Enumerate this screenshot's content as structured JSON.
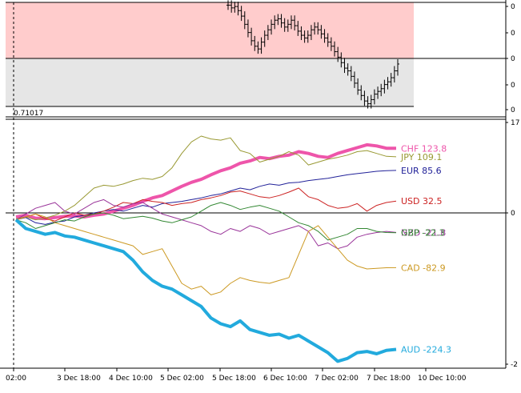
{
  "chart_data": [
    {
      "type": "candlestick",
      "title": "",
      "price_label": "0.71017",
      "y_ticks": [
        "0",
        "0",
        "0",
        "0",
        "0"
      ],
      "zones": [
        {
          "name": "overbought-zone",
          "color": "#ffcccc"
        },
        {
          "name": "oversold-zone",
          "color": "#e6e6e6"
        }
      ],
      "close_path": [
        1.1,
        1.08,
        1.09,
        1.06,
        1.02,
        0.96,
        0.9,
        0.84,
        0.8,
        0.78,
        0.83,
        0.88,
        0.92,
        0.96,
        0.99,
        1.0,
        0.97,
        0.94,
        0.96,
        0.99,
        0.95,
        0.91,
        0.88,
        0.86,
        0.88,
        0.92,
        0.94,
        0.92,
        0.89,
        0.86,
        0.83,
        0.8,
        0.76,
        0.72,
        0.68,
        0.64,
        0.62,
        0.58,
        0.53,
        0.48,
        0.44,
        0.4,
        0.38,
        0.41,
        0.45,
        0.47,
        0.49,
        0.52,
        0.54,
        0.57,
        0.62,
        0.67
      ]
    },
    {
      "type": "line",
      "title": "",
      "x_ticks": [
        "02:00",
        "3 Dec 18:00",
        "4 Dec 10:00",
        "5 Dec 02:00",
        "5 Dec 18:00",
        "6 Dec 10:00",
        "7 Dec 02:00",
        "7 Dec 18:00",
        "10 Dec 10:00"
      ],
      "y_ticks": [
        "17",
        "0",
        "-2"
      ],
      "ylim": [
        -250,
        170
      ],
      "series": [
        {
          "name": "CHF",
          "label": "CHF 123.8",
          "color": "#ee55aa",
          "width": 4,
          "values": [
            5,
            8,
            3,
            2,
            4,
            6,
            7,
            5,
            8,
            10,
            15,
            20,
            25,
            32,
            38,
            42,
            50,
            58,
            65,
            70,
            78,
            85,
            90,
            98,
            102,
            108,
            106,
            110,
            112,
            118,
            115,
            110,
            108,
            115,
            120,
            125,
            130,
            128,
            124,
            123.8
          ]
        },
        {
          "name": "JPY",
          "label": "JPY 109.1",
          "color": "#999933",
          "width": 1,
          "values": [
            2,
            5,
            0,
            3,
            8,
            15,
            25,
            40,
            55,
            60,
            58,
            62,
            68,
            72,
            70,
            75,
            90,
            115,
            135,
            145,
            140,
            138,
            142,
            120,
            115,
            100,
            105,
            110,
            118,
            112,
            95,
            100,
            105,
            108,
            112,
            118,
            120,
            115,
            110,
            109.1
          ]
        },
        {
          "name": "EUR",
          "label": "EUR 85.6",
          "color": "#222299",
          "width": 1,
          "values": [
            0,
            4,
            -5,
            -8,
            -4,
            -2,
            5,
            8,
            12,
            15,
            18,
            15,
            20,
            25,
            22,
            28,
            30,
            32,
            35,
            38,
            42,
            45,
            50,
            55,
            52,
            58,
            62,
            60,
            64,
            65,
            68,
            70,
            72,
            75,
            78,
            80,
            82,
            84,
            85,
            85.6
          ]
        },
        {
          "name": "USD",
          "label": "USD 32.5",
          "color": "#cc2222",
          "width": 1,
          "values": [
            0,
            5,
            10,
            2,
            -2,
            5,
            12,
            8,
            10,
            15,
            22,
            30,
            28,
            35,
            32,
            30,
            25,
            28,
            30,
            35,
            38,
            42,
            48,
            50,
            45,
            40,
            38,
            42,
            48,
            55,
            40,
            35,
            25,
            20,
            22,
            28,
            15,
            25,
            30,
            32.5
          ]
        },
        {
          "name": "NZD",
          "label": "NZD -21.8",
          "color": "#993399",
          "width": 1,
          "values": [
            0,
            10,
            20,
            25,
            30,
            15,
            10,
            20,
            30,
            35,
            25,
            22,
            28,
            30,
            20,
            10,
            5,
            0,
            -5,
            -10,
            -20,
            -25,
            -15,
            -20,
            -10,
            -15,
            -25,
            -20,
            -15,
            -10,
            -20,
            -45,
            -40,
            -50,
            -45,
            -30,
            -25,
            -22,
            -20,
            -21.8
          ]
        },
        {
          "name": "GBP",
          "label": "GBP -22.3",
          "color": "#338833",
          "width": 1,
          "values": [
            0,
            -5,
            -15,
            -10,
            -5,
            0,
            -2,
            5,
            10,
            12,
            8,
            2,
            4,
            6,
            3,
            -2,
            -5,
            0,
            5,
            15,
            25,
            30,
            25,
            18,
            22,
            25,
            20,
            15,
            5,
            -5,
            -10,
            -20,
            -35,
            -30,
            -25,
            -15,
            -15,
            -20,
            -22,
            -22.3
          ]
        },
        {
          "name": "CAD",
          "label": "CAD -82.9",
          "color": "#cc9922",
          "width": 1,
          "values": [
            0,
            5,
            10,
            5,
            -5,
            -10,
            -15,
            -20,
            -25,
            -30,
            -35,
            -40,
            -45,
            -60,
            -55,
            -50,
            -80,
            -110,
            -120,
            -115,
            -130,
            -125,
            -110,
            -100,
            -105,
            -108,
            -110,
            -105,
            -100,
            -60,
            -20,
            -10,
            -30,
            -50,
            -70,
            -80,
            -85,
            -84,
            -83,
            -82.9
          ]
        },
        {
          "name": "AUD",
          "label": "AUD -224.3",
          "color": "#22aadd",
          "width": 4,
          "values": [
            0,
            -15,
            -20,
            -25,
            -22,
            -28,
            -30,
            -35,
            -40,
            -45,
            -50,
            -55,
            -70,
            -90,
            -105,
            -115,
            -120,
            -130,
            -140,
            -150,
            -170,
            -180,
            -185,
            -175,
            -190,
            -195,
            -200,
            -198,
            -205,
            -200,
            -210,
            -220,
            -230,
            -245,
            -240,
            -230,
            -228,
            -232,
            -226,
            -224.3
          ]
        }
      ]
    }
  ]
}
